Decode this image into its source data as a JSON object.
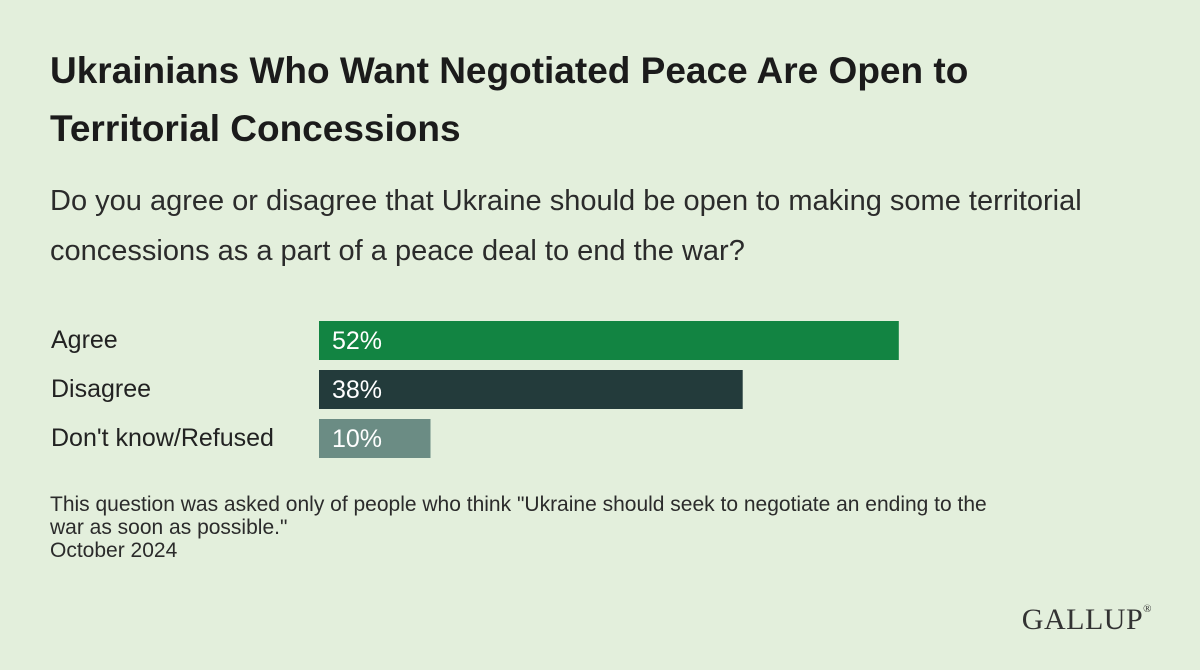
{
  "chart_data": {
    "type": "bar",
    "orientation": "horizontal",
    "title": "Ukrainians Who Want Negotiated Peace Are Open to Territorial Concessions",
    "subtitle": "Do you agree or disagree that Ukraine should be open to making some territorial concessions as a part of a peace deal to end the war?",
    "categories": [
      "Agree",
      "Disagree",
      "Don't know/Refused"
    ],
    "values": [
      52,
      38,
      10
    ],
    "value_labels": [
      "52%",
      "38%",
      "10%"
    ],
    "colors": [
      "#128442",
      "#233b3b",
      "#6b8c84"
    ],
    "xlim": [
      0,
      100
    ],
    "grid": false
  },
  "note": {
    "line1": "This question was asked only of people who think \"Ukraine should seek to negotiate an ending to the",
    "line2": "war as soon as possible.\"",
    "date": "October 2024"
  },
  "logo": {
    "text": "GALLUP",
    "mark": "®"
  },
  "colors": {
    "background": "#e3efdc"
  }
}
